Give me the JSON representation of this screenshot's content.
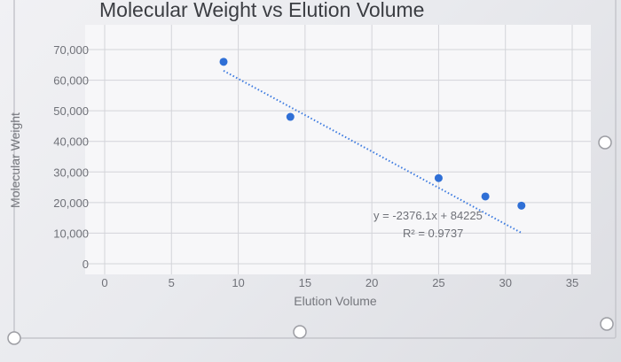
{
  "chart_data": {
    "type": "scatter",
    "title": "Molecular Weight vs Elution Volume",
    "xlabel": "Elution Volume",
    "ylabel": "Molecular Weight",
    "xlim": [
      0,
      35
    ],
    "ylim": [
      0,
      70000
    ],
    "x_ticks": [
      "0",
      "5",
      "10",
      "15",
      "20",
      "25",
      "30",
      "35"
    ],
    "y_ticks": [
      "0",
      "10,000",
      "20,000",
      "30,000",
      "40,000",
      "50,000",
      "60,000",
      "70,000"
    ],
    "grid": true,
    "legend": "none",
    "series": [
      {
        "points": [
          {
            "x": 8.9,
            "y": 66000
          },
          {
            "x": 13.9,
            "y": 48000
          },
          {
            "x": 25.0,
            "y": 28000
          },
          {
            "x": 28.5,
            "y": 22000
          },
          {
            "x": 31.2,
            "y": 19000
          }
        ]
      }
    ],
    "trendline": {
      "type": "linear",
      "slope": -2376.1,
      "intercept": 84225,
      "x_range": [
        8.9,
        31.2
      ],
      "equation_label": "y = -2376.1x + 84225",
      "r2_label": "R² = 0.9737"
    },
    "colors": {
      "marker": "#2f6fd6",
      "trendline": "#3d7be0",
      "gridline": "#d3d4d9",
      "plot_background": "#f7f7f9"
    }
  }
}
